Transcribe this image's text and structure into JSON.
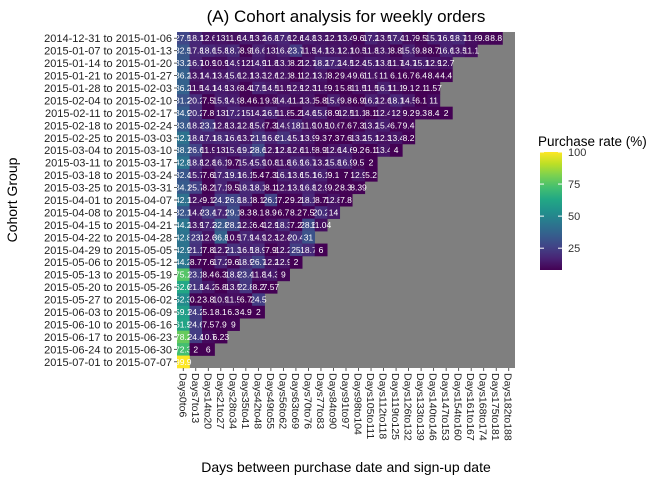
{
  "chart_data": {
    "type": "heatmap",
    "title": "(A) Cohort analysis for weekly orders",
    "xlabel": "Days between purchase date and sign-up date",
    "ylabel": "Cohort Group",
    "legend": {
      "title": "Purchase rate (%)",
      "ticks": [
        25,
        50,
        75,
        100
      ],
      "range": [
        8,
        100
      ],
      "position": "right"
    },
    "missing_color": "#7f7f7f",
    "x_categories": [
      "Days0to6",
      "Days7to13",
      "Days14to20",
      "Days21to27",
      "Days28to34",
      "Days35to41",
      "Days42to48",
      "Days49to55",
      "Days56to62",
      "Days63to69",
      "Days70to76",
      "Days77to83",
      "Days84to90",
      "Days91to97",
      "Days98to104",
      "Days105to111",
      "Days112to118",
      "Days119to125",
      "Days126to132",
      "Days133to139",
      "Days140to146",
      "Days147to153",
      "Days154to160",
      "Days161to167",
      "Days168to174",
      "Days175to181",
      "Days182to188"
    ],
    "cohorts": [
      "2014-12-31 to 2015-01-06",
      "2015-01-07 to 2015-01-13",
      "2015-01-14 to 2015-01-20",
      "2015-01-21 to 2015-01-27",
      "2015-01-28 to 2015-02-03",
      "2015-02-04 to 2015-02-10",
      "2015-02-11 to 2015-02-17",
      "2015-02-18 to 2015-02-24",
      "2015-02-25 to 2015-03-03",
      "2015-03-04 to 2015-03-10",
      "2015-03-11 to 2015-03-17",
      "2015-03-18 to 2015-03-24",
      "2015-03-25 to 2015-03-31",
      "2015-04-01 to 2015-04-07",
      "2015-04-08 to 2015-04-14",
      "2015-04-15 to 2015-04-21",
      "2015-04-22 to 2015-04-28",
      "2015-04-29 to 2015-05-05",
      "2015-05-06 to 2015-05-12",
      "2015-05-13 to 2015-05-19",
      "2015-05-20 to 2015-05-26",
      "2015-05-27 to 2015-06-02",
      "2015-06-03 to 2015-06-09",
      "2015-06-10 to 2015-06-16",
      "2015-06-17 to 2015-06-23",
      "2015-06-24 to 2015-06-30",
      "2015-07-01 to 2015-07-07"
    ],
    "values": [
      [
        27.5,
        18.1,
        12.6,
        13.0,
        11.6,
        14.5,
        13.2,
        16.8,
        17.6,
        12.6,
        14.8,
        13.2,
        12.1,
        13.4,
        9.6,
        17.2,
        13.5,
        17.4,
        11.7,
        9.5,
        15.7,
        16.9,
        18.7,
        11.8,
        9.8,
        8.8
      ],
      [
        32.5,
        17.8,
        18.6,
        15.8,
        18.7,
        8.9,
        16.6,
        13.0,
        16.4,
        23.7,
        11.5,
        14.1,
        13.1,
        12.1,
        10.5,
        11.8,
        13.1,
        8.8,
        15.9,
        9.8,
        8.7,
        16.6,
        13.5,
        11.1
      ],
      [
        33.2,
        16.7,
        10.9,
        10.9,
        14.9,
        12.0,
        14.9,
        11.8,
        13.1,
        8.2,
        12.7,
        18.2,
        17.2,
        14.5,
        12.4,
        15.1,
        13.8,
        11.7,
        14.7,
        15.1,
        12.9,
        12.7
      ],
      [
        36.2,
        13.1,
        14.1,
        13.4,
        15.6,
        12.1,
        13.3,
        12.6,
        12.1,
        8.1,
        12.1,
        13.1,
        8.2,
        9.4,
        9.6,
        11.9,
        11.0,
        6.1,
        6.7,
        6.4,
        8.4,
        4.4
      ],
      [
        36.2,
        11.5,
        14.1,
        14.9,
        13.6,
        8.4,
        17.5,
        14.5,
        11.5,
        12.9,
        12.3,
        11.5,
        9.1,
        5.8,
        11.5,
        11.5,
        16.1,
        11.1,
        9.1,
        2.1,
        1.57
      ],
      [
        31.2,
        20.2,
        7.5,
        15.9,
        14.9,
        8.4,
        6.1,
        9.9,
        14.4,
        11.2,
        13.1,
        5.8,
        15.6,
        9.8,
        6.9,
        16.2,
        12.6,
        18.1,
        14.5,
        6.1,
        11
      ],
      [
        34.9,
        20.2,
        7.8,
        13.0,
        17.2,
        15.0,
        14.2,
        16.5,
        11.8,
        5.2,
        14.6,
        15.8,
        8.9,
        12.5,
        11.1,
        8.1,
        12.4,
        12.0,
        9.2,
        9.3,
        8.4,
        2
      ],
      [
        33.6,
        18.3,
        23.1,
        12.8,
        13.2,
        12.8,
        15.6,
        7.3,
        14.9,
        18.0,
        11.9,
        10.5,
        10.6,
        7.6,
        7.3,
        13.2,
        15.4,
        6.7,
        9.4
      ],
      [
        42.7,
        18.6,
        17.1,
        18.7,
        16.6,
        13.7,
        21.5,
        16.6,
        21.4,
        15.1,
        13.9,
        9.3,
        7.3,
        7.6,
        13.2,
        15.1,
        12.3,
        13.4,
        8.2
      ],
      [
        38.1,
        26.6,
        11.9,
        13.0,
        15.6,
        19.2,
        28.6,
        12.1,
        12.8,
        12.6,
        11.5,
        8.9,
        12.6,
        14.6,
        9.2,
        6.1,
        13.4,
        4
      ],
      [
        42.8,
        18.8,
        12.8,
        16.1,
        9.7,
        15.4,
        15.9,
        10.8,
        11.8,
        16.9,
        16.7,
        13.2,
        15.8,
        16.9,
        9.5,
        2
      ],
      [
        32.4,
        15.7,
        7.6,
        17.3,
        19.1,
        16.1,
        5.4,
        7.3,
        16.1,
        13.6,
        15.1,
        16.1,
        9.1,
        7.0,
        12.9,
        5.2
      ],
      [
        34.1,
        25.7,
        8.2,
        17.1,
        9.5,
        18.3,
        18.1,
        8.1,
        12.1,
        13.9,
        16.8,
        12.9,
        9.2,
        8.3,
        8.39
      ],
      [
        42.1,
        12.4,
        9.1,
        24.1,
        26.8,
        18.1,
        8.1,
        26.1,
        7.2,
        9.2,
        18.1,
        8.7,
        12.8,
        7.8
      ],
      [
        32.1,
        14.4,
        23.4,
        17.1,
        29.1,
        8.3,
        8.1,
        8.9,
        6.7,
        8.2,
        7.5,
        20.2,
        14
      ],
      [
        44.2,
        13.9,
        17.2,
        32.8,
        28.2,
        12.3,
        6.4,
        12.9,
        18.3,
        7.2,
        28.6,
        11.04
      ],
      [
        42.8,
        23.0,
        12.6,
        36.8,
        10.5,
        17.9,
        14.9,
        12.3,
        12.4,
        20.4,
        31
      ],
      [
        42.9,
        21.1,
        7.8,
        12.7,
        21.3,
        16.5,
        18.9,
        7.9,
        12.2,
        25,
        18.7,
        6
      ],
      [
        44.2,
        8.7,
        7.6,
        17.2,
        9.6,
        18.9,
        26.7,
        12.2,
        12.9,
        2
      ],
      [
        75.1,
        23.1,
        8.4,
        6.3,
        18.8,
        23.4,
        11.8,
        14.3,
        9
      ],
      [
        62.6,
        21.8,
        14.2,
        5.8,
        13.5,
        22.8,
        8.2,
        7.57
      ],
      [
        52.3,
        0.2,
        3.8,
        10.9,
        11.5,
        6.7,
        24.5
      ],
      [
        59.1,
        24.2,
        5.1,
        8.1,
        6.3,
        4.9,
        2
      ],
      [
        61.5,
        24.6,
        7.5,
        7.9,
        9
      ],
      [
        78.2,
        24.4,
        10.7,
        6.23
      ],
      [
        72.3,
        2.0,
        6
      ],
      [
        99.9
      ]
    ]
  }
}
